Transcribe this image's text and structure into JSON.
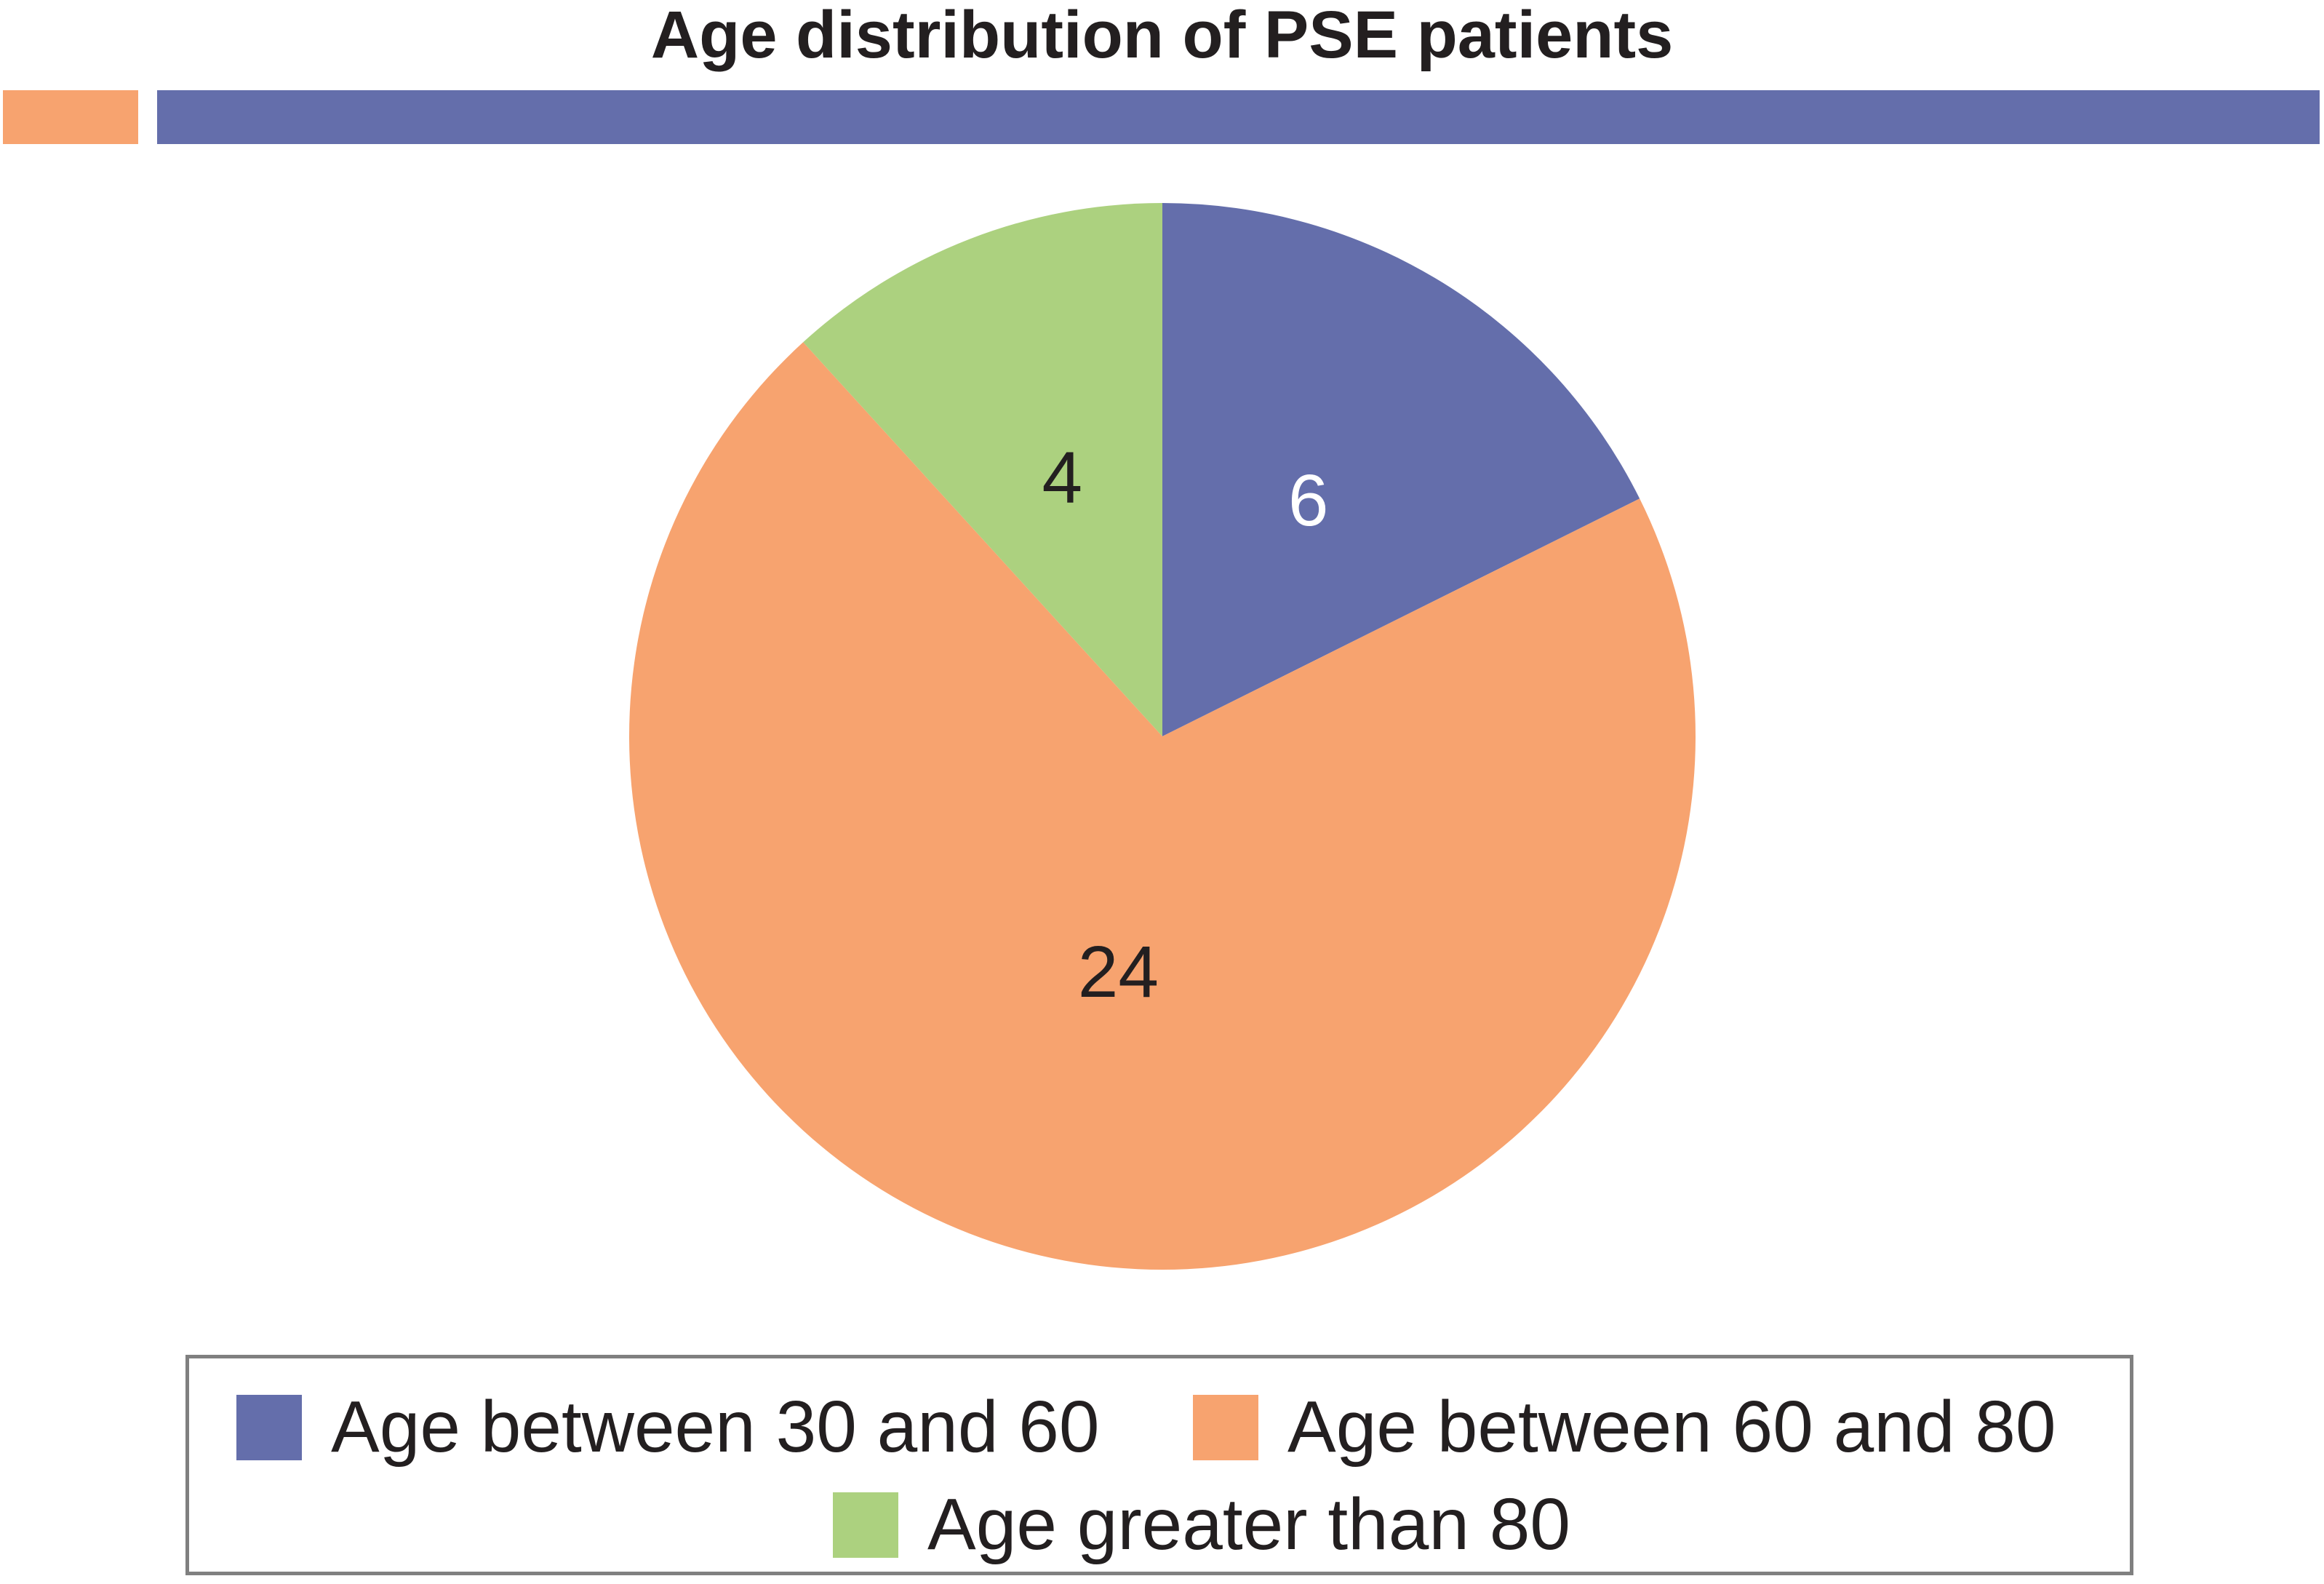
{
  "chart_data": {
    "type": "pie",
    "title": "Age distribution of PSE patients",
    "slices": [
      {
        "label": "Age between 30 and 60",
        "value": 6,
        "color": "#646eab",
        "text_color": "#ffffff"
      },
      {
        "label": "Age between 60 and 80",
        "value": 24,
        "color": "#f7a36f",
        "text_color": "#231f20"
      },
      {
        "label": "Age greater than 80",
        "value": 4,
        "color": "#acd17f",
        "text_color": "#231f20"
      }
    ],
    "start_angle": "12 o'clock",
    "direction": "clockwise",
    "legend_position": "bottom"
  },
  "header_bars": {
    "left_color": "#f7a36f",
    "right_color": "#646eab"
  }
}
